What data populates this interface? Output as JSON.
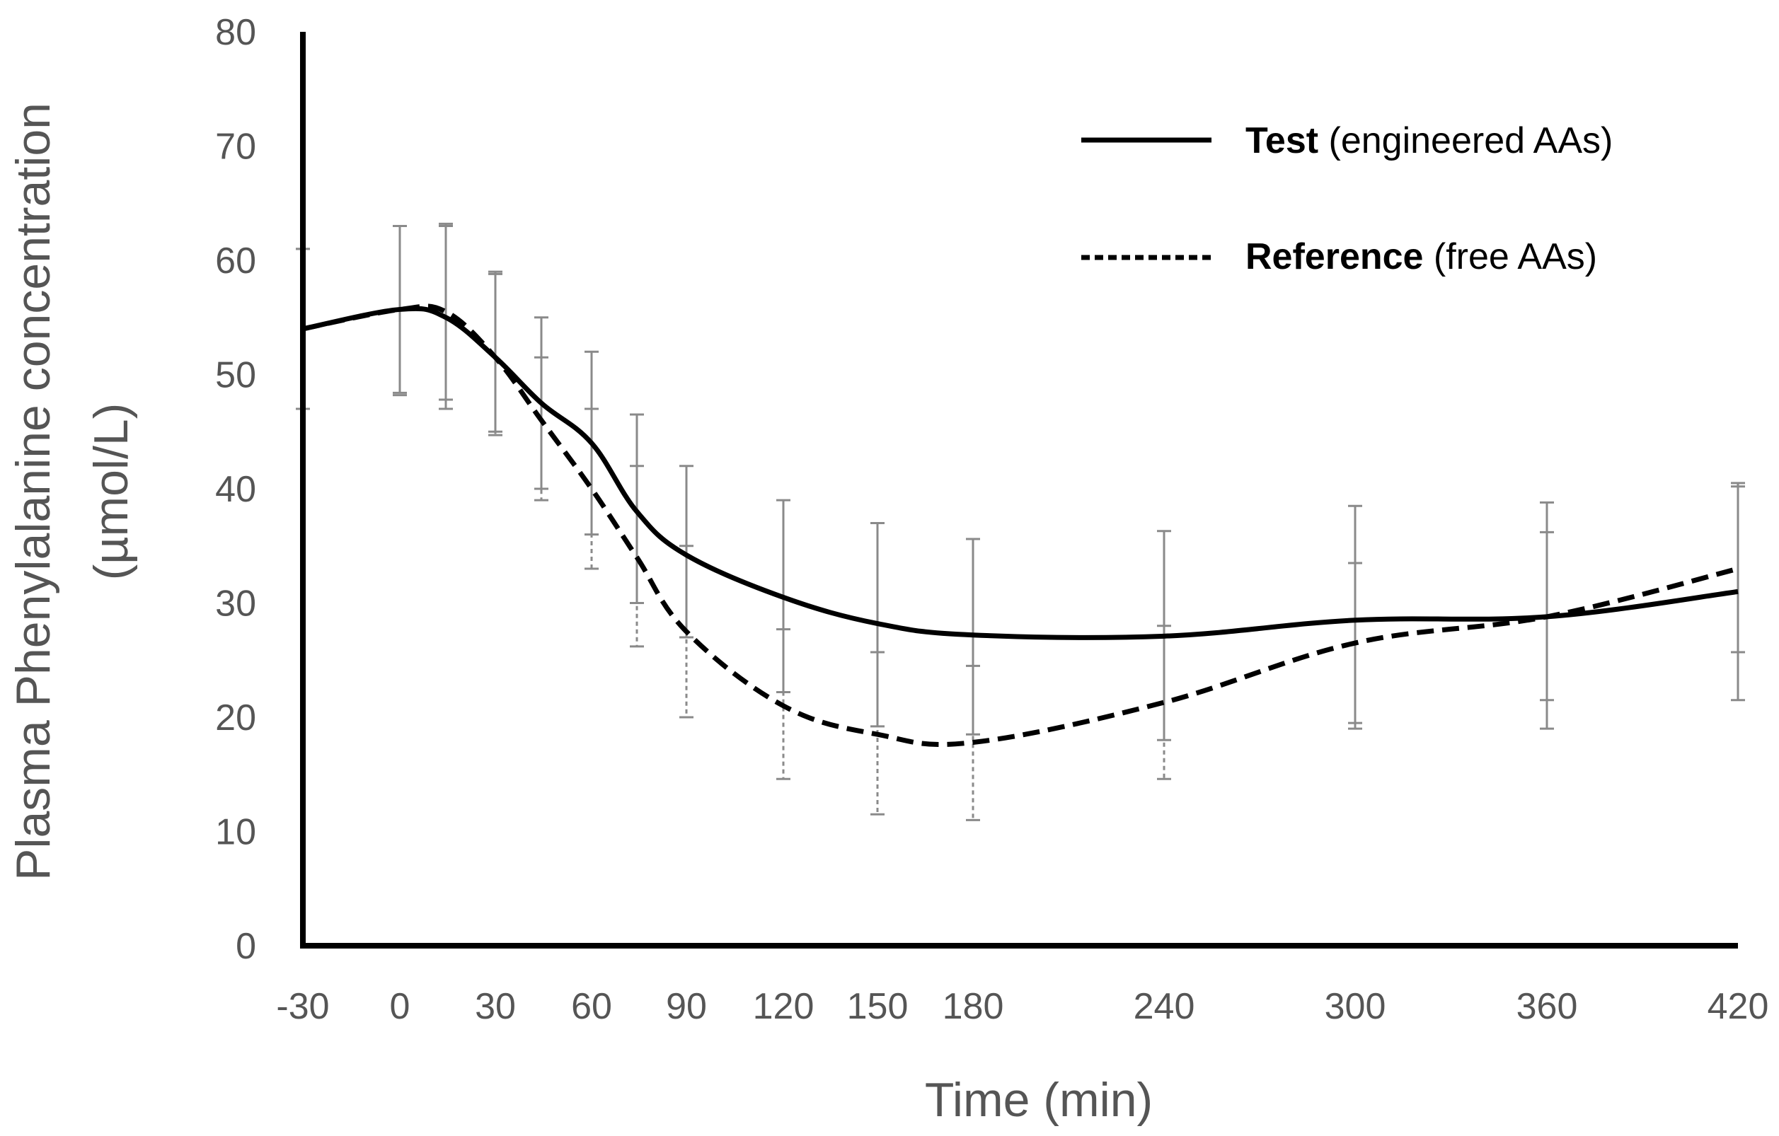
{
  "chart_data": {
    "type": "line",
    "title": "",
    "xlabel": "Time (min)",
    "ylabel_line1": "Plasma Phenylalanine concentration",
    "ylabel_line2": "(µmol/L)",
    "ylim": [
      0,
      80
    ],
    "yticks": [
      "0",
      "10",
      "20",
      "30",
      "40",
      "50",
      "60",
      "70",
      "80"
    ],
    "x": [
      -30,
      0,
      15,
      30,
      45,
      60,
      75,
      90,
      120,
      150,
      180,
      240,
      300,
      360,
      420
    ],
    "x_tick_labels": [
      "-30",
      "0",
      "30",
      "60",
      "90",
      "120",
      "150",
      "180",
      "240",
      "300",
      "360",
      "420"
    ],
    "legend_position": "top-right",
    "series": [
      {
        "name": "Test",
        "legend_bold": "Test",
        "legend_rest": " (engineered AAs)",
        "style": "solid",
        "values": [
          54,
          55.7,
          55,
          51.5,
          47.5,
          44,
          38,
          34.2,
          30.5,
          28.2,
          27.2,
          27.1,
          28.5,
          28.8,
          31
        ],
        "err_upper": [
          61,
          63,
          63,
          59,
          55,
          52,
          46.5,
          42,
          39,
          37,
          35.6,
          36.3,
          38.5,
          38.8,
          40.5
        ],
        "err_lower": [
          47,
          48.4,
          47,
          45,
          40,
          36,
          30,
          27,
          22.2,
          19.2,
          18.5,
          18,
          19,
          19,
          21.5
        ]
      },
      {
        "name": "Reference",
        "legend_bold": "Reference",
        "legend_rest": " (free AAs)",
        "style": "dashed",
        "values": [
          54,
          55.7,
          55.5,
          51.5,
          46,
          40,
          34,
          27.5,
          21,
          18.5,
          17.8,
          21.3,
          26.5,
          28.8,
          33
        ],
        "err_upper": [
          61,
          63,
          63.2,
          58.8,
          51.5,
          47,
          42,
          35,
          27.7,
          25.7,
          24.5,
          28,
          33.5,
          36.2,
          40.2
        ],
        "err_lower": [
          47,
          48.2,
          47.8,
          44.7,
          39,
          33,
          26.2,
          20,
          14.6,
          11.5,
          11,
          14.6,
          19.5,
          21.5,
          25.7
        ]
      }
    ]
  }
}
